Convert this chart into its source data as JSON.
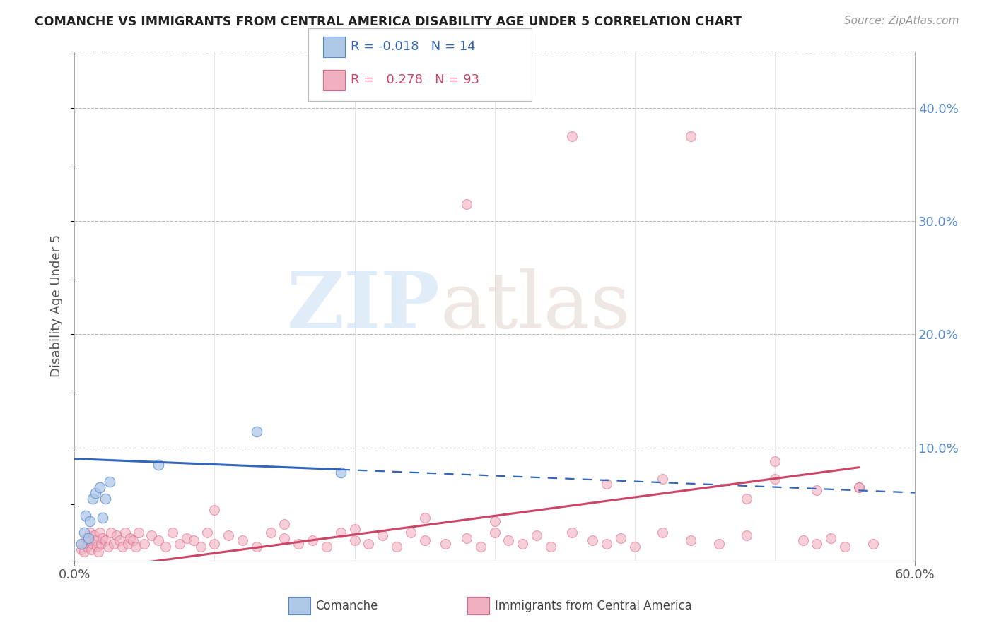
{
  "title": "COMANCHE VS IMMIGRANTS FROM CENTRAL AMERICA DISABILITY AGE UNDER 5 CORRELATION CHART",
  "source": "Source: ZipAtlas.com",
  "ylabel": "Disability Age Under 5",
  "xlim": [
    0,
    0.6
  ],
  "ylim": [
    0,
    0.45
  ],
  "yticks_right": [
    0.1,
    0.2,
    0.3,
    0.4
  ],
  "ytick_labels_right": [
    "10.0%",
    "20.0%",
    "30.0%",
    "40.0%"
  ],
  "comanche_R": -0.018,
  "comanche_N": 14,
  "immigrants_R": 0.278,
  "immigrants_N": 93,
  "blue_color": "#aec8e8",
  "blue_edge_color": "#5588cc",
  "blue_line_color": "#3366bb",
  "pink_color": "#f0b0c0",
  "pink_edge_color": "#dd6688",
  "pink_line_color": "#cc4466",
  "background_color": "#ffffff",
  "grid_color": "#bbbbbb",
  "axis_label_color": "#5588cc",
  "title_color": "#222222",
  "comanche_x": [
    0.005,
    0.007,
    0.008,
    0.01,
    0.011,
    0.013,
    0.015,
    0.018,
    0.02,
    0.022,
    0.025,
    0.06,
    0.13,
    0.19
  ],
  "comanche_y": [
    0.015,
    0.025,
    0.04,
    0.02,
    0.035,
    0.055,
    0.06,
    0.065,
    0.038,
    0.055,
    0.07,
    0.085,
    0.114,
    0.078
  ],
  "immigrants_x": [
    0.005,
    0.006,
    0.007,
    0.008,
    0.009,
    0.01,
    0.011,
    0.012,
    0.013,
    0.014,
    0.015,
    0.016,
    0.017,
    0.018,
    0.019,
    0.02,
    0.022,
    0.024,
    0.026,
    0.028,
    0.03,
    0.032,
    0.034,
    0.036,
    0.038,
    0.04,
    0.042,
    0.044,
    0.046,
    0.05,
    0.055,
    0.06,
    0.065,
    0.07,
    0.075,
    0.08,
    0.085,
    0.09,
    0.095,
    0.1,
    0.11,
    0.12,
    0.13,
    0.14,
    0.15,
    0.16,
    0.17,
    0.18,
    0.19,
    0.2,
    0.21,
    0.22,
    0.23,
    0.24,
    0.25,
    0.265,
    0.28,
    0.29,
    0.3,
    0.31,
    0.32,
    0.33,
    0.34,
    0.355,
    0.37,
    0.38,
    0.39,
    0.4,
    0.42,
    0.44,
    0.46,
    0.48,
    0.5,
    0.52,
    0.53,
    0.54,
    0.55,
    0.56,
    0.57,
    0.355,
    0.44,
    0.28,
    0.5,
    0.42,
    0.56,
    0.48,
    0.53,
    0.38,
    0.3,
    0.25,
    0.2,
    0.15,
    0.1
  ],
  "immigrants_y": [
    0.01,
    0.015,
    0.008,
    0.02,
    0.012,
    0.018,
    0.025,
    0.01,
    0.015,
    0.022,
    0.018,
    0.012,
    0.008,
    0.025,
    0.015,
    0.02,
    0.018,
    0.012,
    0.025,
    0.015,
    0.022,
    0.018,
    0.012,
    0.025,
    0.015,
    0.02,
    0.018,
    0.012,
    0.025,
    0.015,
    0.022,
    0.018,
    0.012,
    0.025,
    0.015,
    0.02,
    0.018,
    0.012,
    0.025,
    0.015,
    0.022,
    0.018,
    0.012,
    0.025,
    0.02,
    0.015,
    0.018,
    0.012,
    0.025,
    0.018,
    0.015,
    0.022,
    0.012,
    0.025,
    0.018,
    0.015,
    0.02,
    0.012,
    0.025,
    0.018,
    0.015,
    0.022,
    0.012,
    0.025,
    0.018,
    0.015,
    0.02,
    0.012,
    0.025,
    0.018,
    0.015,
    0.022,
    0.072,
    0.018,
    0.015,
    0.02,
    0.012,
    0.065,
    0.015,
    0.375,
    0.375,
    0.315,
    0.088,
    0.072,
    0.065,
    0.055,
    0.062,
    0.068,
    0.035,
    0.038,
    0.028,
    0.032,
    0.045
  ]
}
